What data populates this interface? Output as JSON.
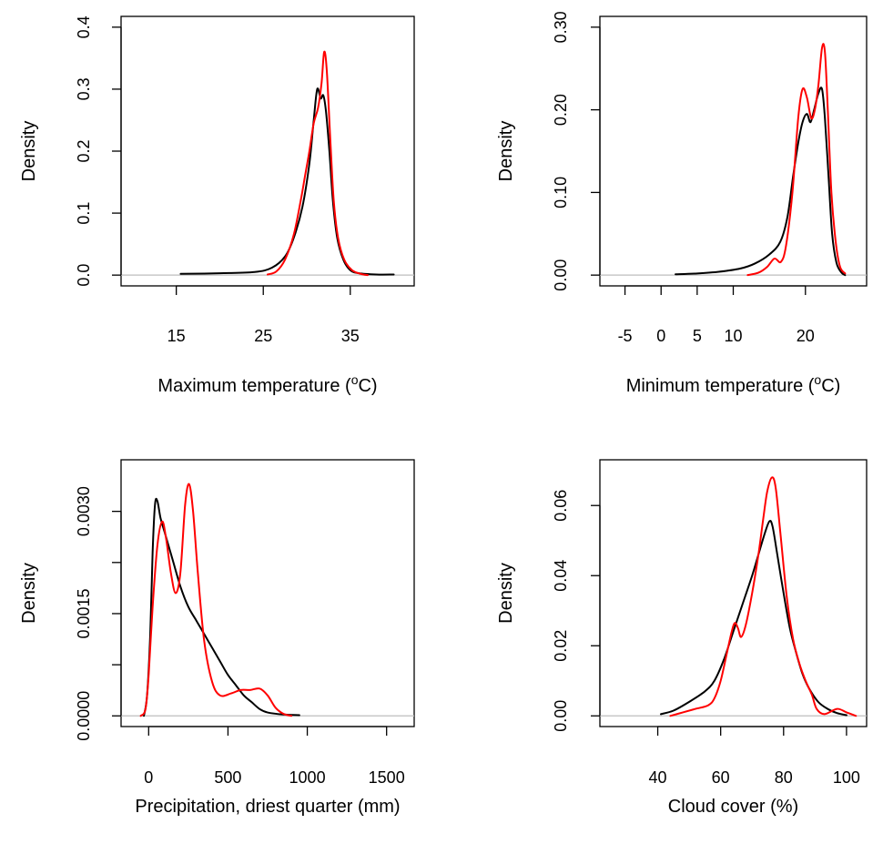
{
  "chart_data": [
    {
      "type": "line",
      "xlabel": "Maximum temperature (°C)",
      "ylabel": "Density",
      "xlim": [
        10,
        41
      ],
      "ylim": [
        0,
        0.4
      ],
      "x_ticks": [
        15,
        25,
        35
      ],
      "y_ticks": [
        0.0,
        0.1,
        0.2,
        0.3,
        0.4
      ],
      "x_tick_labels": [
        "15",
        "25",
        "35"
      ],
      "y_tick_labels": [
        "0.0",
        "0.1",
        "0.2",
        "0.3",
        "0.4"
      ],
      "zero_line": true,
      "series": [
        {
          "color": "#000000",
          "points": [
            [
              15.5,
              0.002
            ],
            [
              20,
              0.003
            ],
            [
              24,
              0.005
            ],
            [
              26,
              0.012
            ],
            [
              27.5,
              0.03
            ],
            [
              28.5,
              0.06
            ],
            [
              29.5,
              0.11
            ],
            [
              30.3,
              0.18
            ],
            [
              30.8,
              0.25
            ],
            [
              31.2,
              0.3
            ],
            [
              31.6,
              0.285
            ],
            [
              31.9,
              0.29
            ],
            [
              32.2,
              0.265
            ],
            [
              32.6,
              0.2
            ],
            [
              33.0,
              0.12
            ],
            [
              33.5,
              0.06
            ],
            [
              34.2,
              0.025
            ],
            [
              35,
              0.008
            ],
            [
              36,
              0.003
            ],
            [
              38,
              0.001
            ],
            [
              40,
              0.001
            ]
          ]
        },
        {
          "color": "#ff0000",
          "points": [
            [
              25.5,
              0.001
            ],
            [
              26.5,
              0.006
            ],
            [
              27.5,
              0.025
            ],
            [
              28.5,
              0.065
            ],
            [
              29.3,
              0.12
            ],
            [
              29.8,
              0.16
            ],
            [
              30.3,
              0.2
            ],
            [
              30.8,
              0.245
            ],
            [
              31.3,
              0.27
            ],
            [
              31.7,
              0.31
            ],
            [
              32.0,
              0.36
            ],
            [
              32.3,
              0.33
            ],
            [
              32.7,
              0.22
            ],
            [
              33.1,
              0.12
            ],
            [
              33.6,
              0.06
            ],
            [
              34.3,
              0.025
            ],
            [
              35.2,
              0.008
            ],
            [
              36.2,
              0.002
            ],
            [
              37,
              0.0
            ]
          ]
        }
      ]
    },
    {
      "type": "line",
      "xlabel": "Minimum temperature (°C)",
      "ylabel": "Density",
      "xlim": [
        -7,
        27
      ],
      "ylim": [
        0,
        0.3
      ],
      "x_ticks": [
        -5,
        0,
        5,
        10,
        20
      ],
      "y_ticks": [
        0.0,
        0.1,
        0.2,
        0.3
      ],
      "x_tick_labels": [
        "-5",
        "0",
        "5",
        "10",
        "20"
      ],
      "y_tick_labels": [
        "0.00",
        "0.10",
        "0.20",
        "0.30"
      ],
      "zero_line": true,
      "series": [
        {
          "color": "#000000",
          "points": [
            [
              2,
              0.001
            ],
            [
              5,
              0.002
            ],
            [
              8,
              0.004
            ],
            [
              11,
              0.008
            ],
            [
              13,
              0.014
            ],
            [
              15,
              0.025
            ],
            [
              16.5,
              0.04
            ],
            [
              17.5,
              0.07
            ],
            [
              18.3,
              0.12
            ],
            [
              19,
              0.16
            ],
            [
              19.6,
              0.185
            ],
            [
              20.2,
              0.195
            ],
            [
              20.7,
              0.185
            ],
            [
              21.2,
              0.2
            ],
            [
              21.8,
              0.22
            ],
            [
              22.3,
              0.225
            ],
            [
              22.7,
              0.19
            ],
            [
              23.2,
              0.12
            ],
            [
              23.7,
              0.05
            ],
            [
              24.3,
              0.015
            ],
            [
              25,
              0.003
            ],
            [
              25.5,
              0.0
            ]
          ]
        },
        {
          "color": "#ff0000",
          "points": [
            [
              12,
              0.0
            ],
            [
              13.5,
              0.003
            ],
            [
              14.7,
              0.01
            ],
            [
              15.7,
              0.02
            ],
            [
              16.6,
              0.016
            ],
            [
              17.3,
              0.035
            ],
            [
              18.2,
              0.1
            ],
            [
              19.0,
              0.19
            ],
            [
              19.6,
              0.225
            ],
            [
              20.2,
              0.215
            ],
            [
              20.8,
              0.19
            ],
            [
              21.3,
              0.2
            ],
            [
              21.8,
              0.23
            ],
            [
              22.3,
              0.275
            ],
            [
              22.7,
              0.27
            ],
            [
              23.1,
              0.2
            ],
            [
              23.6,
              0.1
            ],
            [
              24.2,
              0.04
            ],
            [
              24.8,
              0.01
            ],
            [
              25.5,
              0.002
            ]
          ]
        }
      ]
    },
    {
      "type": "line",
      "xlabel": "Precipitation, driest quarter (mm)",
      "ylabel": "Density",
      "xlim": [
        -100,
        1600
      ],
      "ylim": [
        0,
        0.0036
      ],
      "x_ticks": [
        0,
        500,
        1000,
        1500
      ],
      "y_ticks": [
        0.0,
        0.00075,
        0.0015,
        0.00225,
        0.003
      ],
      "x_tick_labels": [
        "0",
        "500",
        "1000",
        "1500"
      ],
      "y_tick_labels": [
        "0.0000",
        "",
        "0.0015",
        "",
        "0.0030"
      ],
      "zero_line": true,
      "series": [
        {
          "color": "#000000",
          "points": [
            [
              -30,
              0.0
            ],
            [
              -10,
              0.0003
            ],
            [
              10,
              0.0012
            ],
            [
              25,
              0.0024
            ],
            [
              40,
              0.0031
            ],
            [
              55,
              0.00315
            ],
            [
              75,
              0.0029
            ],
            [
              100,
              0.0027
            ],
            [
              150,
              0.0023
            ],
            [
              200,
              0.0019
            ],
            [
              250,
              0.0016
            ],
            [
              300,
              0.0014
            ],
            [
              350,
              0.0012
            ],
            [
              400,
              0.001
            ],
            [
              450,
              0.0008
            ],
            [
              500,
              0.0006
            ],
            [
              550,
              0.00045
            ],
            [
              600,
              0.0003
            ],
            [
              650,
              0.0002
            ],
            [
              700,
              0.0001
            ],
            [
              750,
              5e-05
            ],
            [
              850,
              2e-05
            ],
            [
              950,
              1e-05
            ]
          ]
        },
        {
          "color": "#ff0000",
          "points": [
            [
              -50,
              0.0
            ],
            [
              -20,
              0.0001
            ],
            [
              0,
              0.0006
            ],
            [
              25,
              0.0016
            ],
            [
              55,
              0.0025
            ],
            [
              85,
              0.00285
            ],
            [
              110,
              0.0026
            ],
            [
              140,
              0.0021
            ],
            [
              170,
              0.0018
            ],
            [
              200,
              0.0021
            ],
            [
              230,
              0.0031
            ],
            [
              255,
              0.0034
            ],
            [
              280,
              0.003
            ],
            [
              310,
              0.0021
            ],
            [
              350,
              0.0011
            ],
            [
              400,
              0.0005
            ],
            [
              450,
              0.0003
            ],
            [
              520,
              0.00033
            ],
            [
              580,
              0.00038
            ],
            [
              640,
              0.00038
            ],
            [
              700,
              0.0004
            ],
            [
              750,
              0.0003
            ],
            [
              800,
              0.00012
            ],
            [
              850,
              3e-05
            ],
            [
              900,
              0.0
            ]
          ]
        }
      ]
    },
    {
      "type": "line",
      "xlabel": "Cloud cover (%)",
      "ylabel": "Density",
      "xlim": [
        25,
        103
      ],
      "ylim": [
        0,
        0.07
      ],
      "x_ticks": [
        40,
        60,
        80,
        100
      ],
      "y_ticks": [
        0.0,
        0.02,
        0.04,
        0.06
      ],
      "x_tick_labels": [
        "40",
        "60",
        "80",
        "100"
      ],
      "y_tick_labels": [
        "0.00",
        "0.02",
        "0.04",
        "0.06"
      ],
      "zero_line": true,
      "series": [
        {
          "color": "#000000",
          "points": [
            [
              41,
              0.0005
            ],
            [
              45,
              0.0015
            ],
            [
              50,
              0.004
            ],
            [
              55,
              0.007
            ],
            [
              58,
              0.01
            ],
            [
              61,
              0.016
            ],
            [
              64,
              0.024
            ],
            [
              67,
              0.032
            ],
            [
              70,
              0.04
            ],
            [
              72,
              0.046
            ],
            [
              74,
              0.052
            ],
            [
              75.5,
              0.0555
            ],
            [
              76.5,
              0.054
            ],
            [
              78,
              0.046
            ],
            [
              80,
              0.035
            ],
            [
              82,
              0.025
            ],
            [
              84,
              0.018
            ],
            [
              86,
              0.012
            ],
            [
              88,
              0.008
            ],
            [
              91,
              0.004
            ],
            [
              94,
              0.002
            ],
            [
              97,
              0.0008
            ],
            [
              100,
              0.0002
            ]
          ]
        },
        {
          "color": "#ff0000",
          "points": [
            [
              44,
              0.0
            ],
            [
              48,
              0.001
            ],
            [
              52,
              0.002
            ],
            [
              56,
              0.003
            ],
            [
              58,
              0.005
            ],
            [
              60,
              0.01
            ],
            [
              62,
              0.018
            ],
            [
              63.5,
              0.024
            ],
            [
              64.5,
              0.0265
            ],
            [
              65.5,
              0.025
            ],
            [
              66.5,
              0.0225
            ],
            [
              68,
              0.026
            ],
            [
              70,
              0.035
            ],
            [
              72,
              0.046
            ],
            [
              73.5,
              0.056
            ],
            [
              74.8,
              0.064
            ],
            [
              76.3,
              0.068
            ],
            [
              77.5,
              0.065
            ],
            [
              79,
              0.052
            ],
            [
              81,
              0.034
            ],
            [
              83,
              0.022
            ],
            [
              85,
              0.015
            ],
            [
              87,
              0.01
            ],
            [
              89,
              0.006
            ],
            [
              90.5,
              0.002
            ],
            [
              93,
              0.0005
            ],
            [
              97,
              0.002
            ],
            [
              100,
              0.001
            ],
            [
              103,
              0.0
            ]
          ]
        }
      ]
    }
  ]
}
